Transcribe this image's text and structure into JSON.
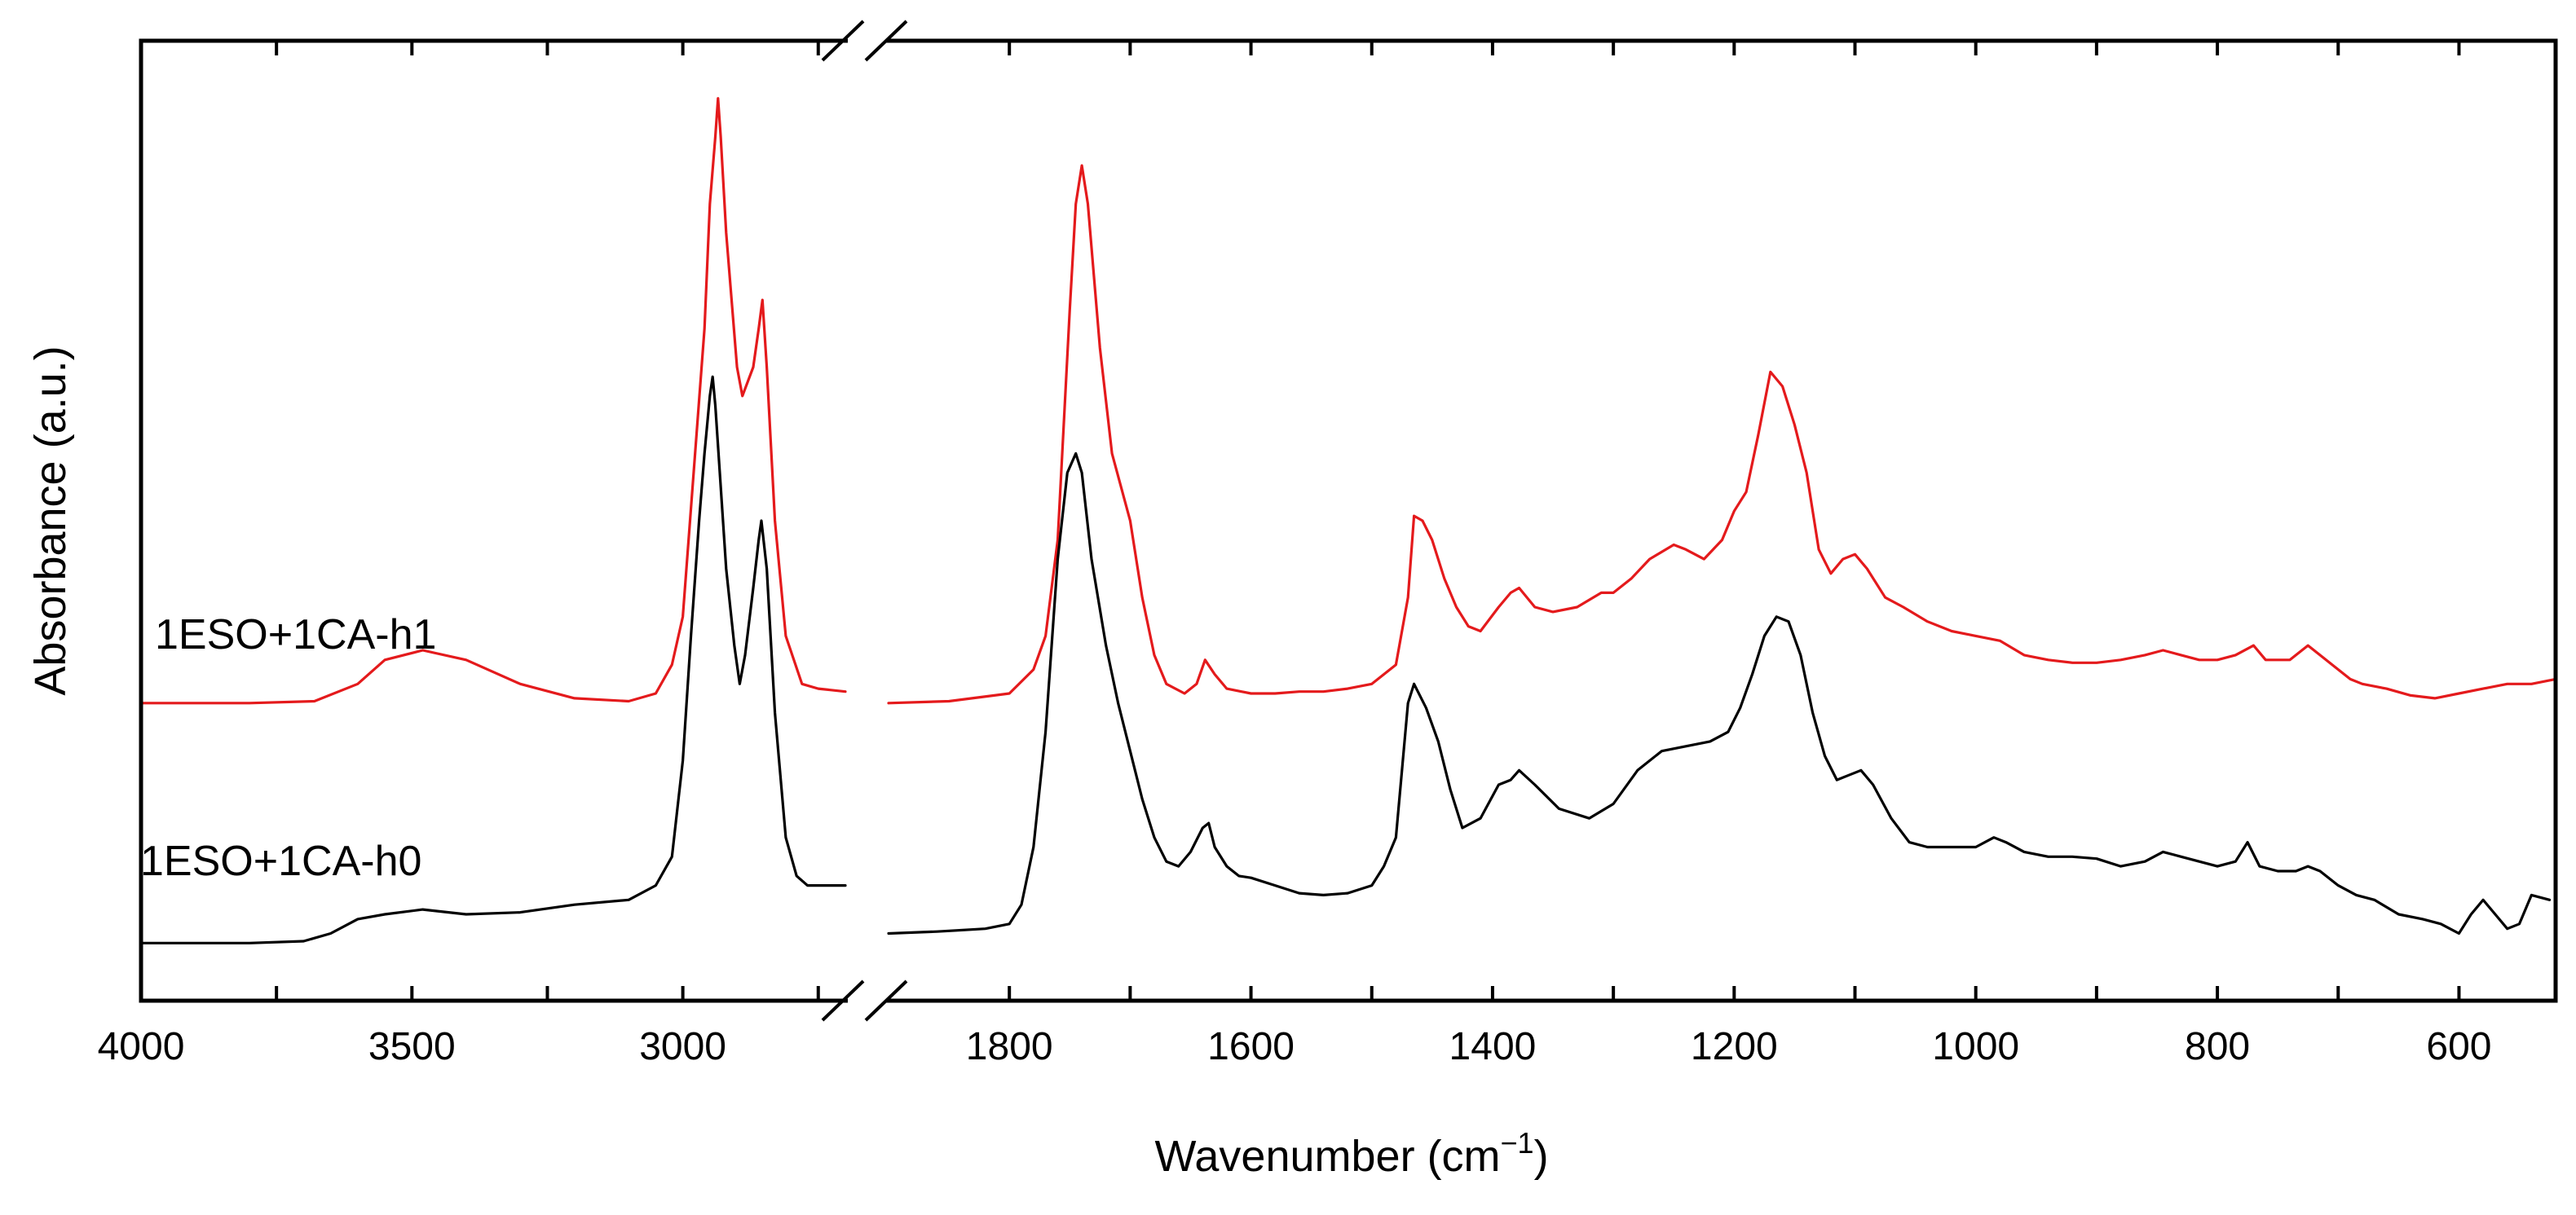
{
  "chart_data": {
    "type": "line",
    "title": "",
    "xlabel": "Wavenumber (cm",
    "xlabel_sup": "−1",
    "xlabel_suffix": ")",
    "ylabel": "Absorbance (a.u.)",
    "x_reversed": true,
    "x_break": {
      "from": 2700,
      "to": 1900
    },
    "segments": [
      {
        "xlim": [
          4000,
          2700
        ]
      },
      {
        "xlim": [
          1900,
          520
        ]
      }
    ],
    "ylim": [
      0,
      1
    ],
    "x_ticks": [
      4000,
      3750,
      3500,
      3250,
      3000,
      2750,
      1800,
      1700,
      1600,
      1500,
      1400,
      1300,
      1200,
      1100,
      1000,
      900,
      800,
      700,
      600
    ],
    "x_tick_labels": [
      {
        "value": 4000,
        "label": "4000"
      },
      {
        "value": 3500,
        "label": "3500"
      },
      {
        "value": 3000,
        "label": "3000"
      },
      {
        "value": 1800,
        "label": "1800"
      },
      {
        "value": 1600,
        "label": "1600"
      },
      {
        "value": 1400,
        "label": "1400"
      },
      {
        "value": 1200,
        "label": "1200"
      },
      {
        "value": 1000,
        "label": "1000"
      },
      {
        "value": 800,
        "label": "800"
      },
      {
        "value": 600,
        "label": "600"
      }
    ],
    "series": [
      {
        "name": "1ESO+1CA-h1",
        "color": "#e41a1c",
        "points": [
          [
            4000,
            0.31
          ],
          [
            3800,
            0.31
          ],
          [
            3680,
            0.312
          ],
          [
            3600,
            0.33
          ],
          [
            3550,
            0.355
          ],
          [
            3480,
            0.365
          ],
          [
            3400,
            0.355
          ],
          [
            3300,
            0.33
          ],
          [
            3200,
            0.315
          ],
          [
            3100,
            0.312
          ],
          [
            3050,
            0.32
          ],
          [
            3020,
            0.35
          ],
          [
            3000,
            0.4
          ],
          [
            2980,
            0.55
          ],
          [
            2960,
            0.7
          ],
          [
            2950,
            0.83
          ],
          [
            2940,
            0.9
          ],
          [
            2935,
            0.94
          ],
          [
            2930,
            0.9
          ],
          [
            2920,
            0.8
          ],
          [
            2900,
            0.66
          ],
          [
            2890,
            0.63
          ],
          [
            2870,
            0.66
          ],
          [
            2860,
            0.7
          ],
          [
            2853,
            0.73
          ],
          [
            2845,
            0.66
          ],
          [
            2830,
            0.5
          ],
          [
            2810,
            0.38
          ],
          [
            2780,
            0.33
          ],
          [
            2750,
            0.325
          ],
          [
            2700,
            0.322
          ],
          [
            1900,
            0.31
          ],
          [
            1850,
            0.312
          ],
          [
            1800,
            0.32
          ],
          [
            1780,
            0.345
          ],
          [
            1770,
            0.38
          ],
          [
            1760,
            0.48
          ],
          [
            1750,
            0.72
          ],
          [
            1745,
            0.83
          ],
          [
            1740,
            0.87
          ],
          [
            1735,
            0.83
          ],
          [
            1725,
            0.68
          ],
          [
            1715,
            0.57
          ],
          [
            1700,
            0.5
          ],
          [
            1690,
            0.42
          ],
          [
            1680,
            0.36
          ],
          [
            1670,
            0.33
          ],
          [
            1655,
            0.32
          ],
          [
            1645,
            0.33
          ],
          [
            1638,
            0.355
          ],
          [
            1630,
            0.34
          ],
          [
            1620,
            0.325
          ],
          [
            1600,
            0.32
          ],
          [
            1580,
            0.32
          ],
          [
            1560,
            0.322
          ],
          [
            1540,
            0.322
          ],
          [
            1520,
            0.325
          ],
          [
            1500,
            0.33
          ],
          [
            1480,
            0.35
          ],
          [
            1470,
            0.42
          ],
          [
            1465,
            0.505
          ],
          [
            1458,
            0.5
          ],
          [
            1450,
            0.48
          ],
          [
            1440,
            0.44
          ],
          [
            1430,
            0.41
          ],
          [
            1420,
            0.39
          ],
          [
            1410,
            0.385
          ],
          [
            1395,
            0.41
          ],
          [
            1385,
            0.425
          ],
          [
            1378,
            0.43
          ],
          [
            1365,
            0.41
          ],
          [
            1350,
            0.405
          ],
          [
            1330,
            0.41
          ],
          [
            1310,
            0.425
          ],
          [
            1300,
            0.425
          ],
          [
            1285,
            0.44
          ],
          [
            1270,
            0.46
          ],
          [
            1250,
            0.475
          ],
          [
            1240,
            0.47
          ],
          [
            1225,
            0.46
          ],
          [
            1210,
            0.48
          ],
          [
            1200,
            0.51
          ],
          [
            1190,
            0.53
          ],
          [
            1180,
            0.59
          ],
          [
            1170,
            0.655
          ],
          [
            1160,
            0.64
          ],
          [
            1150,
            0.6
          ],
          [
            1140,
            0.55
          ],
          [
            1130,
            0.47
          ],
          [
            1120,
            0.445
          ],
          [
            1110,
            0.46
          ],
          [
            1100,
            0.465
          ],
          [
            1090,
            0.45
          ],
          [
            1075,
            0.42
          ],
          [
            1060,
            0.41
          ],
          [
            1040,
            0.395
          ],
          [
            1020,
            0.385
          ],
          [
            1000,
            0.38
          ],
          [
            980,
            0.375
          ],
          [
            960,
            0.36
          ],
          [
            940,
            0.355
          ],
          [
            920,
            0.352
          ],
          [
            900,
            0.352
          ],
          [
            880,
            0.355
          ],
          [
            860,
            0.36
          ],
          [
            845,
            0.365
          ],
          [
            830,
            0.36
          ],
          [
            815,
            0.355
          ],
          [
            800,
            0.355
          ],
          [
            785,
            0.36
          ],
          [
            770,
            0.37
          ],
          [
            760,
            0.355
          ],
          [
            740,
            0.355
          ],
          [
            725,
            0.37
          ],
          [
            715,
            0.36
          ],
          [
            705,
            0.35
          ],
          [
            690,
            0.335
          ],
          [
            680,
            0.33
          ],
          [
            660,
            0.325
          ],
          [
            640,
            0.318
          ],
          [
            620,
            0.315
          ],
          [
            600,
            0.32
          ],
          [
            580,
            0.325
          ],
          [
            560,
            0.33
          ],
          [
            540,
            0.33
          ],
          [
            520,
            0.335
          ]
        ]
      },
      {
        "name": "1ESO+1CA-h0",
        "color": "#000000",
        "points": [
          [
            4000,
            0.06
          ],
          [
            3800,
            0.06
          ],
          [
            3700,
            0.062
          ],
          [
            3650,
            0.07
          ],
          [
            3600,
            0.085
          ],
          [
            3550,
            0.09
          ],
          [
            3480,
            0.095
          ],
          [
            3400,
            0.09
          ],
          [
            3300,
            0.092
          ],
          [
            3200,
            0.1
          ],
          [
            3100,
            0.105
          ],
          [
            3050,
            0.12
          ],
          [
            3020,
            0.15
          ],
          [
            3000,
            0.25
          ],
          [
            2985,
            0.38
          ],
          [
            2970,
            0.5
          ],
          [
            2960,
            0.57
          ],
          [
            2950,
            0.63
          ],
          [
            2945,
            0.65
          ],
          [
            2940,
            0.62
          ],
          [
            2920,
            0.45
          ],
          [
            2905,
            0.37
          ],
          [
            2895,
            0.33
          ],
          [
            2885,
            0.36
          ],
          [
            2870,
            0.43
          ],
          [
            2860,
            0.48
          ],
          [
            2855,
            0.5
          ],
          [
            2845,
            0.45
          ],
          [
            2830,
            0.3
          ],
          [
            2810,
            0.17
          ],
          [
            2790,
            0.13
          ],
          [
            2770,
            0.12
          ],
          [
            2750,
            0.12
          ],
          [
            2700,
            0.12
          ],
          [
            1900,
            0.07
          ],
          [
            1860,
            0.072
          ],
          [
            1820,
            0.075
          ],
          [
            1800,
            0.08
          ],
          [
            1790,
            0.1
          ],
          [
            1780,
            0.16
          ],
          [
            1770,
            0.28
          ],
          [
            1760,
            0.46
          ],
          [
            1752,
            0.55
          ],
          [
            1745,
            0.57
          ],
          [
            1740,
            0.55
          ],
          [
            1732,
            0.46
          ],
          [
            1720,
            0.37
          ],
          [
            1710,
            0.31
          ],
          [
            1700,
            0.26
          ],
          [
            1690,
            0.21
          ],
          [
            1680,
            0.17
          ],
          [
            1670,
            0.145
          ],
          [
            1660,
            0.14
          ],
          [
            1650,
            0.155
          ],
          [
            1640,
            0.18
          ],
          [
            1635,
            0.185
          ],
          [
            1630,
            0.16
          ],
          [
            1620,
            0.14
          ],
          [
            1610,
            0.13
          ],
          [
            1600,
            0.128
          ],
          [
            1580,
            0.12
          ],
          [
            1560,
            0.112
          ],
          [
            1540,
            0.11
          ],
          [
            1520,
            0.112
          ],
          [
            1500,
            0.12
          ],
          [
            1490,
            0.14
          ],
          [
            1480,
            0.17
          ],
          [
            1470,
            0.31
          ],
          [
            1465,
            0.33
          ],
          [
            1455,
            0.305
          ],
          [
            1445,
            0.27
          ],
          [
            1435,
            0.22
          ],
          [
            1425,
            0.18
          ],
          [
            1410,
            0.19
          ],
          [
            1395,
            0.225
          ],
          [
            1385,
            0.23
          ],
          [
            1378,
            0.24
          ],
          [
            1365,
            0.225
          ],
          [
            1345,
            0.2
          ],
          [
            1320,
            0.19
          ],
          [
            1300,
            0.205
          ],
          [
            1280,
            0.24
          ],
          [
            1260,
            0.26
          ],
          [
            1240,
            0.265
          ],
          [
            1220,
            0.27
          ],
          [
            1205,
            0.28
          ],
          [
            1195,
            0.305
          ],
          [
            1185,
            0.34
          ],
          [
            1175,
            0.38
          ],
          [
            1165,
            0.4
          ],
          [
            1155,
            0.395
          ],
          [
            1145,
            0.36
          ],
          [
            1135,
            0.3
          ],
          [
            1125,
            0.255
          ],
          [
            1115,
            0.23
          ],
          [
            1105,
            0.235
          ],
          [
            1095,
            0.24
          ],
          [
            1085,
            0.225
          ],
          [
            1070,
            0.19
          ],
          [
            1055,
            0.165
          ],
          [
            1040,
            0.16
          ],
          [
            1020,
            0.16
          ],
          [
            1000,
            0.16
          ],
          [
            985,
            0.17
          ],
          [
            975,
            0.165
          ],
          [
            960,
            0.155
          ],
          [
            940,
            0.15
          ],
          [
            920,
            0.15
          ],
          [
            900,
            0.148
          ],
          [
            880,
            0.14
          ],
          [
            860,
            0.145
          ],
          [
            845,
            0.155
          ],
          [
            830,
            0.15
          ],
          [
            815,
            0.145
          ],
          [
            800,
            0.14
          ],
          [
            785,
            0.145
          ],
          [
            775,
            0.165
          ],
          [
            765,
            0.14
          ],
          [
            750,
            0.135
          ],
          [
            735,
            0.135
          ],
          [
            725,
            0.14
          ],
          [
            715,
            0.135
          ],
          [
            700,
            0.12
          ],
          [
            685,
            0.11
          ],
          [
            670,
            0.105
          ],
          [
            650,
            0.09
          ],
          [
            630,
            0.085
          ],
          [
            615,
            0.08
          ],
          [
            600,
            0.07
          ],
          [
            590,
            0.09
          ],
          [
            580,
            0.105
          ],
          [
            570,
            0.09
          ],
          [
            560,
            0.075
          ],
          [
            550,
            0.08
          ],
          [
            540,
            0.11
          ],
          [
            525,
            0.105
          ]
        ]
      }
    ]
  }
}
